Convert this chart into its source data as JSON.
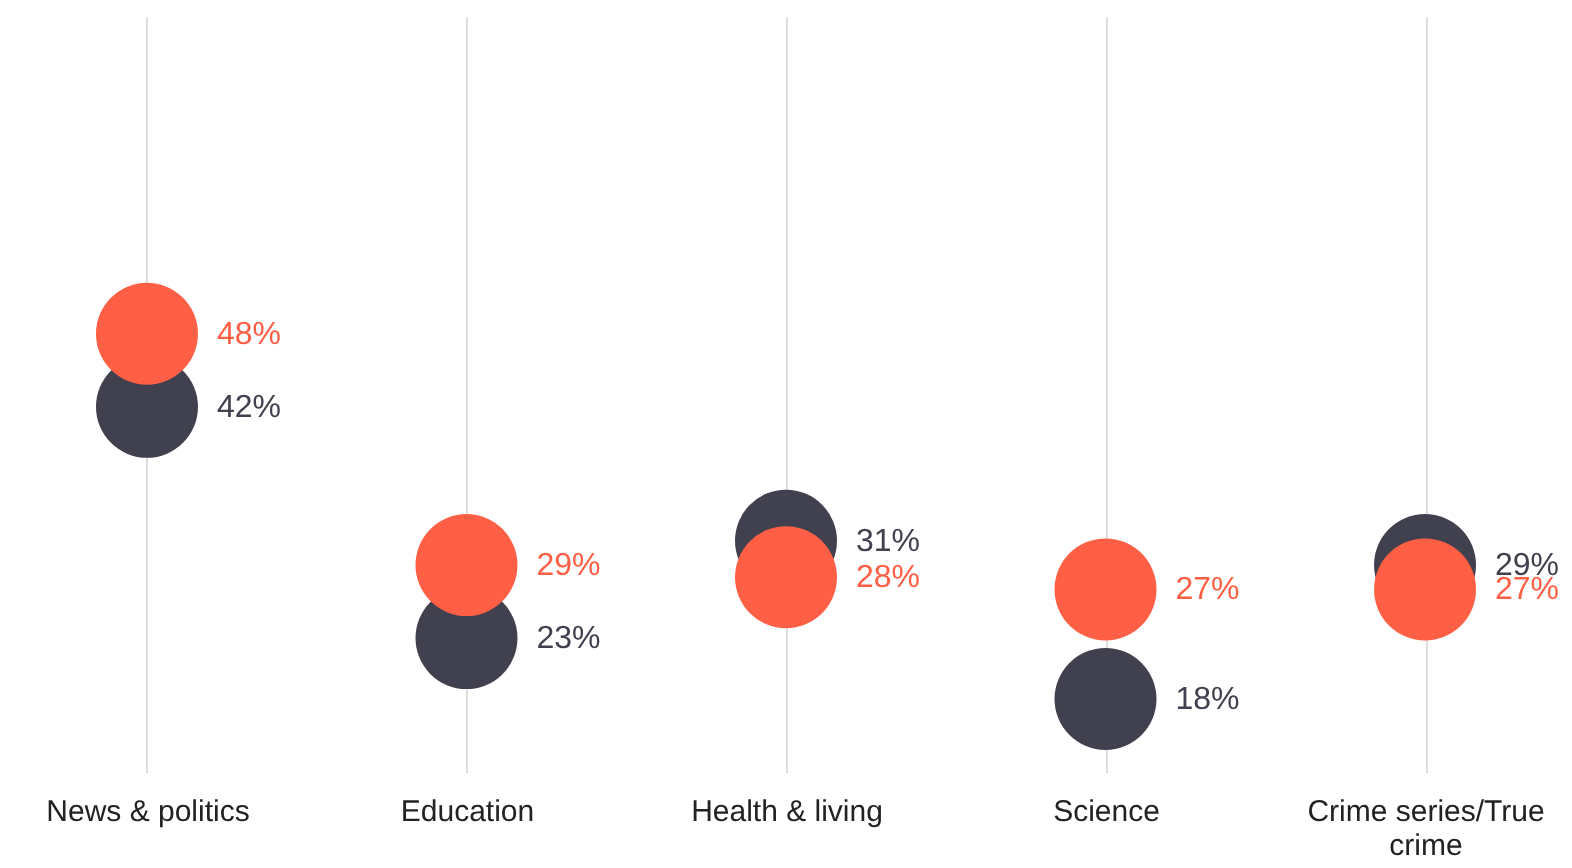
{
  "chart_data": {
    "type": "scatter",
    "categories": [
      "News & politics",
      "Education",
      "Health & living",
      "Science",
      "Crime series/True crime"
    ],
    "series": [
      {
        "color": "#41404f",
        "values": [
          42,
          23,
          31,
          18,
          29
        ],
        "value_labels": [
          "42%",
          "23%",
          "31%",
          "18%",
          "29%"
        ]
      },
      {
        "color": "#ff5f45",
        "values": [
          48,
          29,
          28,
          27,
          27
        ],
        "value_labels": [
          "48%",
          "29%",
          "28%",
          "27%",
          "27%"
        ]
      }
    ],
    "tick_labels": "x",
    "grid": "x"
  }
}
